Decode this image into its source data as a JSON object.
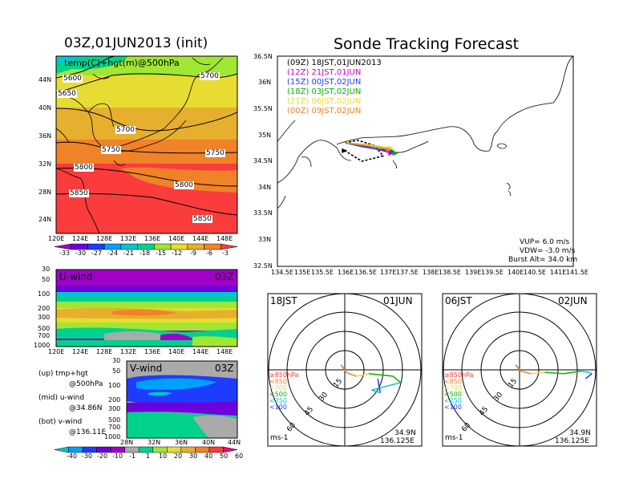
{
  "left_title": "03Z,01JUN2013 (init)",
  "right_title": "Sonde Tracking Forecast",
  "map500": {
    "overlay_label": "temp(C)+hgt(m)@500hPa",
    "contours": [
      "5600",
      "5650",
      "5700",
      "5700",
      "5750",
      "5750",
      "5800",
      "5800",
      "5850",
      "5850"
    ],
    "lat_ticks": [
      "44N",
      "40N",
      "36N",
      "32N",
      "28N",
      "24N"
    ],
    "lon_ticks": [
      "120E",
      "124E",
      "128E",
      "132E",
      "136E",
      "140E",
      "144E",
      "148E"
    ],
    "colorbar": [
      "-33",
      "-30",
      "-27",
      "-24",
      "-21",
      "-18",
      "-15",
      "-12",
      "-9",
      "-6",
      "-3"
    ],
    "colorbar_colors": [
      "#a000c8",
      "#6e00dc",
      "#1e3cff",
      "#00a0ff",
      "#00c8c8",
      "#00d28c",
      "#a0e632",
      "#e6dc32",
      "#e6af2d",
      "#f08228",
      "#fa3c3c"
    ]
  },
  "uwind": {
    "label": "U-wind",
    "time": "03Z",
    "p_ticks": [
      "30",
      "50",
      "100",
      "200",
      "300",
      "500",
      "700",
      "1000"
    ],
    "lon_ticks": [
      "120E",
      "124E",
      "128E",
      "132E",
      "136E",
      "140E",
      "144E",
      "148E"
    ]
  },
  "vwind": {
    "label": "V-wind",
    "time": "03Z",
    "p_ticks": [
      "30",
      "50",
      "100",
      "200",
      "300",
      "500",
      "700",
      "1000"
    ],
    "lat_ticks": [
      "28N",
      "32N",
      "36N",
      "40N",
      "44N"
    ],
    "colorbar": [
      "-40",
      "-30",
      "-20",
      "-10",
      "-1",
      "1",
      "10",
      "20",
      "30",
      "40",
      "50",
      "60"
    ],
    "colorbar_colors": [
      "#00c8c8",
      "#00a0ff",
      "#1e3cff",
      "#6e00dc",
      "#a000c8",
      "#aaaaaa",
      "#00d28c",
      "#a0e632",
      "#e6dc32",
      "#e6af2d",
      "#f08228",
      "#fa3c3c",
      "#f00082"
    ]
  },
  "legend_notes": [
    {
      "a": "(up)  tmp+hgt",
      "b": "@500hPa"
    },
    {
      "a": "(mid)  u-wind",
      "b": "@34.86N"
    },
    {
      "a": "(bot)  v-wind",
      "b": "@136.11E"
    }
  ],
  "track": {
    "launches": [
      {
        "label": "(09Z)  18JST,01JUN2013",
        "color": "#000000"
      },
      {
        "label": "(12Z)  21JST,01JUN",
        "color": "#c800c8"
      },
      {
        "label": "(15Z)  00JST,02JUN",
        "color": "#1e3cff"
      },
      {
        "label": "(18Z)  03JST,02JUN",
        "color": "#00b400"
      },
      {
        "label": "(21Z)  06JST,02JUN",
        "color": "#e6dc32"
      },
      {
        "label": "(00Z)  09JST,02JUN",
        "color": "#f08228"
      }
    ],
    "lat_ticks": [
      "36.5N",
      "36N",
      "35.5N",
      "35N",
      "34.5N",
      "34N",
      "33.5N",
      "33N",
      "32.5N"
    ],
    "lon_ticks": [
      "134.5E",
      "135E",
      "135.5E",
      "136E",
      "136.5E",
      "137E",
      "137.5E",
      "138E",
      "138.5E",
      "139E",
      "139.5E",
      "140E",
      "140.5E",
      "141E",
      "141.5E"
    ],
    "vup": "VUP=  6.0  m/s",
    "vdw": "VDW= -3.0  m/s",
    "burst": "Burst Alt=  34.0  km"
  },
  "hodo_left": {
    "time_label": "18JST",
    "date_label": "01JUN",
    "ring_labels": [
      "15",
      "30",
      "45",
      "60"
    ],
    "levels": [
      {
        "label": "≥850hPa",
        "color": "#fa3c3c"
      },
      {
        "label": "<850",
        "color": "#f08228"
      },
      {
        "label": "<700",
        "color": "#e6dc32"
      },
      {
        "label": "<500",
        "color": "#00b400"
      },
      {
        "label": "<250",
        "color": "#00c8c8"
      },
      {
        "label": "<100",
        "color": "#1e3cff"
      }
    ],
    "units": "ms-1",
    "lat": "34.9N",
    "lon": "136.125E"
  },
  "hodo_right": {
    "time_label": "06JST",
    "date_label": "02JUN",
    "ring_labels": [
      "15",
      "30",
      "45",
      "60"
    ],
    "levels": [
      {
        "label": "≥850hPa",
        "color": "#fa3c3c"
      },
      {
        "label": "<850",
        "color": "#f08228"
      },
      {
        "label": "<700",
        "color": "#e6dc32"
      },
      {
        "label": "<500",
        "color": "#00b400"
      },
      {
        "label": "<250",
        "color": "#00c8c8"
      },
      {
        "label": "<100",
        "color": "#1e3cff"
      }
    ],
    "units": "ms-1",
    "lat": "34.9N",
    "lon": "136.125E"
  },
  "chart_data": [
    {
      "type": "heatmap",
      "title": "03Z,01JUN2013 (init)",
      "subtitle": "temp(C)+hgt(m)@500hPa",
      "xlabel": "",
      "ylabel": "",
      "xlim": [
        120,
        150
      ],
      "ylim": [
        22,
        47
      ],
      "contour_levels": [
        5600,
        5650,
        5700,
        5750,
        5800,
        5850
      ],
      "colorbar_levels": [
        -33,
        -30,
        -27,
        -24,
        -21,
        -18,
        -15,
        -12,
        -9,
        -6,
        -3
      ]
    },
    {
      "type": "heatmap",
      "title": "U-wind",
      "time": "03Z",
      "xlim": [
        120,
        150
      ],
      "ylim": [
        1000,
        30
      ],
      "yscale": "log"
    },
    {
      "type": "heatmap",
      "title": "V-wind",
      "time": "03Z",
      "xlim": [
        28,
        44
      ],
      "ylim": [
        1000,
        30
      ],
      "yscale": "log",
      "colorbar_levels": [
        -40,
        -30,
        -20,
        -10,
        -1,
        1,
        10,
        20,
        30,
        40,
        50,
        60
      ]
    },
    {
      "type": "line",
      "title": "Sonde Tracking Forecast",
      "xlim": [
        134.5,
        141.5
      ],
      "ylim": [
        32.5,
        36.5
      ],
      "series": [
        {
          "name": "(09Z)  18JST,01JUN2013",
          "x": [
            136.1,
            136.4,
            136.8,
            137.0,
            136.5,
            136.1
          ],
          "y": [
            34.85,
            34.9,
            34.8,
            34.6,
            34.5,
            34.7
          ]
        },
        {
          "name": "(12Z)  21JST,01JUN",
          "x": [
            136.1,
            136.5,
            137.0,
            137.2
          ],
          "y": [
            34.85,
            34.8,
            34.7,
            34.65
          ]
        },
        {
          "name": "(15Z)  00JST,02JUN",
          "x": [
            136.1,
            136.5,
            137.1,
            137.3
          ],
          "y": [
            34.85,
            34.78,
            34.7,
            34.65
          ]
        },
        {
          "name": "(18Z)  03JST,02JUN",
          "x": [
            136.1,
            136.6,
            137.2,
            137.3
          ],
          "y": [
            34.85,
            34.8,
            34.72,
            34.66
          ]
        },
        {
          "name": "(21Z)  06JST,02JUN",
          "x": [
            136.1,
            136.6,
            137.2
          ],
          "y": [
            34.85,
            34.82,
            34.75
          ]
        },
        {
          "name": "(00Z)  09JST,02JUN",
          "x": [
            136.1,
            136.6,
            137.15
          ],
          "y": [
            34.85,
            34.8,
            34.72
          ]
        }
      ]
    },
    {
      "type": "line",
      "title": "18JST 01JUN",
      "xlim": [
        -75,
        75
      ],
      "ylim": [
        -75,
        75
      ],
      "rings": [
        15,
        30,
        45,
        60
      ],
      "series": [
        {
          "x": [
            0,
            -3,
            1,
            9,
            19,
            38,
            44,
            21,
            28,
            26
          ],
          "y": [
            0,
            4,
            -2,
            -5,
            -3,
            -5,
            -10,
            -16,
            -18,
            -7
          ]
        }
      ]
    },
    {
      "type": "line",
      "title": "06JST 02JUN",
      "xlim": [
        -75,
        75
      ],
      "ylim": [
        -75,
        75
      ],
      "rings": [
        15,
        30,
        45,
        60
      ],
      "series": [
        {
          "x": [
            0,
            -3,
            1,
            9,
            20,
            35,
            48,
            55,
            57,
            52
          ],
          "y": [
            0,
            4,
            -1,
            -3,
            -2,
            -3,
            -1,
            -2,
            -3,
            -7
          ]
        }
      ]
    }
  ]
}
